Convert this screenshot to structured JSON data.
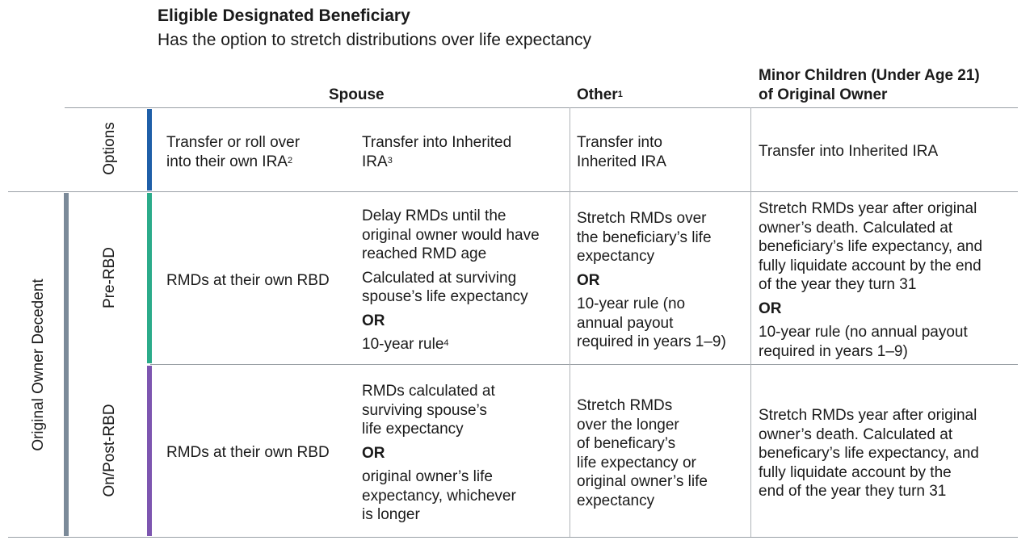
{
  "heading": {
    "title": "Eligible Designated Beneficiary",
    "subtitle": "Has the option to stretch distributions over life expectancy"
  },
  "columns": {
    "spouse": "Spouse",
    "other": "Other",
    "other_sup": "1",
    "minor_line1": "Minor Children (Under Age 21)",
    "minor_line2": "of Original Owner"
  },
  "row_labels": {
    "group": "Original Owner Decedent",
    "options": "Options",
    "pre_rbd": "Pre-RBD",
    "post_rbd": "On/Post-RBD"
  },
  "bar_colors": {
    "options": "#1f5fa8",
    "pre_rbd": "#2bab8a",
    "post_rbd": "#7d56b0",
    "group": "#7b8a99"
  },
  "options_row": {
    "spouse_a_line1": "Transfer or roll over",
    "spouse_a_line2": "into their own IRA",
    "spouse_a_sup": "2",
    "spouse_b_line1": "Transfer into Inherited",
    "spouse_b_line2": "IRA",
    "spouse_b_sup": "3",
    "other_line1": "Transfer into",
    "other_line2": "Inherited IRA",
    "minor": "Transfer into Inherited IRA"
  },
  "pre_rbd_row": {
    "spouse_a": "RMDs at their own RBD",
    "spouse_b_l1": "Delay RMDs until the",
    "spouse_b_l2": "original owner would have",
    "spouse_b_l3": "reached RMD age",
    "spouse_b_l4": "Calculated at surviving",
    "spouse_b_l5": "spouse’s life expectancy",
    "spouse_b_or": "OR",
    "spouse_b_l6": "10-year rule",
    "spouse_b_sup": "4",
    "other_l1": "Stretch RMDs over",
    "other_l2": "the beneficiary’s life",
    "other_l3": "expectancy",
    "other_or": "OR",
    "other_l4": "10-year rule (no",
    "other_l5": "annual payout",
    "other_l6": "required in years 1–9)",
    "minor_l1": "Stretch RMDs year after original",
    "minor_l2": "owner’s death. Calculated at",
    "minor_l3": "beneficiary’s life expectancy, and",
    "minor_l4": "fully liquidate account by the end",
    "minor_l5": "of the year they turn 31",
    "minor_or": "OR",
    "minor_l6": "10-year rule (no annual payout",
    "minor_l7": "required in years 1–9)"
  },
  "post_rbd_row": {
    "spouse_a": "RMDs at their own RBD",
    "spouse_b_l1": "RMDs calculated at",
    "spouse_b_l2": "surviving spouse’s",
    "spouse_b_l3": "life expectancy",
    "spouse_b_or": "OR",
    "spouse_b_l4": "original owner’s life",
    "spouse_b_l5": "expectancy, whichever",
    "spouse_b_l6": "is longer",
    "other_l1": "Stretch RMDs",
    "other_l2": "over the longer",
    "other_l3": "of beneficary’s",
    "other_l4": "life expectancy or",
    "other_l5": "original owner’s life",
    "other_l6": "expectancy",
    "minor_l1": "Stretch RMDs year after original",
    "minor_l2": "owner’s death. Calculated at",
    "minor_l3": "beneficary’s life expectancy, and",
    "minor_l4": "fully liquidate account by the",
    "minor_l5": "end of the year they turn 31"
  }
}
